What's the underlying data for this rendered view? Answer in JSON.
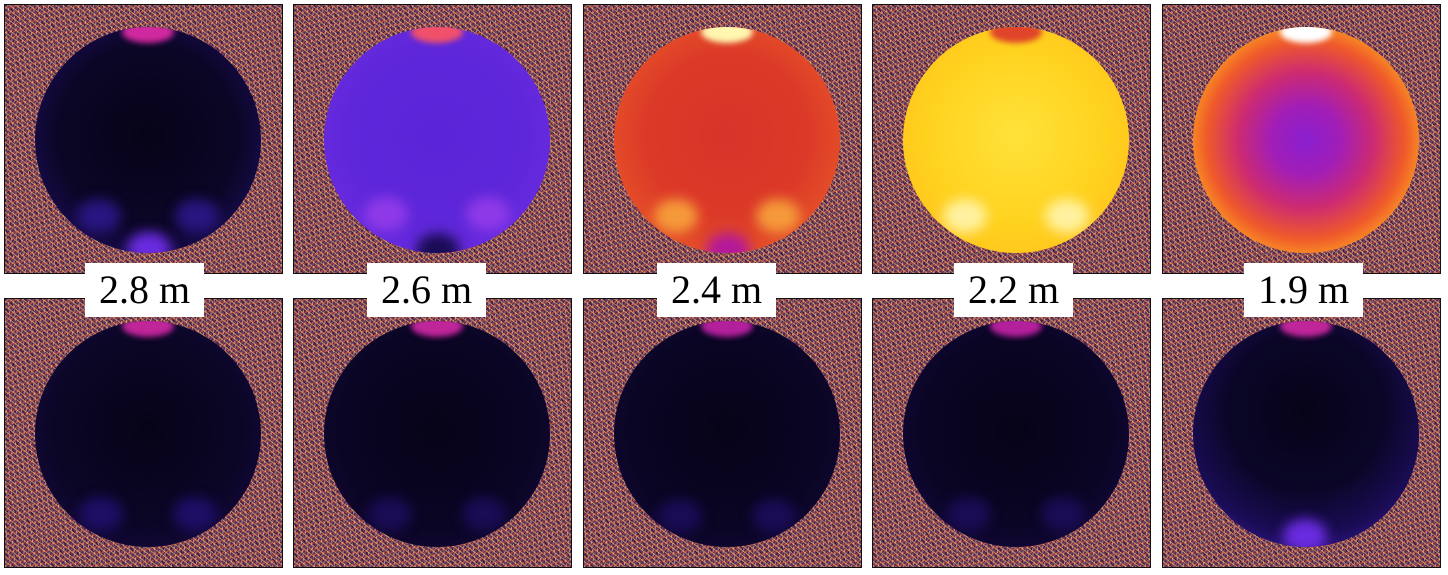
{
  "labels": [
    "2.8 m",
    "2.6 m",
    "2.4 m",
    "2.2 m",
    "1.9 m"
  ],
  "colors": {
    "background_noise": "#7a3f57",
    "black": "#060318",
    "deep_indigo": "#12083a",
    "violet": "#6a2be0",
    "magenta": "#b4199a",
    "red_orange": "#e0442a",
    "orange": "#f07a20",
    "yellow": "#ffd21e",
    "pale_yellow": "#fff6b0"
  }
}
